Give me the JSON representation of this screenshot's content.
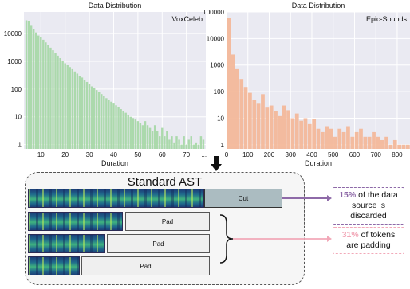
{
  "chart_data": [
    {
      "type": "bar",
      "title": "Data Distribution",
      "legend_label": "VoxCeleb",
      "xlabel": "Duration",
      "ylabel": "",
      "yscale": "log",
      "ylim": [
        0.7,
        60000
      ],
      "xlim": [
        3,
        78
      ],
      "yticks": [
        "1",
        "10",
        "100",
        "1000",
        "10000"
      ],
      "xticks": [
        "10",
        "20",
        "30",
        "40",
        "50",
        "60",
        "70",
        "..."
      ],
      "color": "#a8d8a8",
      "bin_width": 1,
      "x": [
        4,
        5,
        6,
        7,
        8,
        9,
        10,
        11,
        12,
        13,
        14,
        15,
        16,
        17,
        18,
        19,
        20,
        21,
        22,
        23,
        24,
        25,
        26,
        27,
        28,
        29,
        30,
        31,
        32,
        33,
        34,
        35,
        36,
        37,
        38,
        39,
        40,
        41,
        42,
        43,
        44,
        45,
        46,
        47,
        48,
        49,
        50,
        51,
        52,
        53,
        54,
        55,
        56,
        57,
        58,
        59,
        60,
        61,
        62,
        63,
        64,
        65,
        66,
        67,
        68,
        69,
        70,
        71,
        72,
        73,
        74,
        75,
        76,
        77
      ],
      "values": [
        30000,
        28000,
        19000,
        14500,
        11000,
        8500,
        7500,
        6000,
        4800,
        4000,
        3100,
        2500,
        2000,
        1600,
        1300,
        1050,
        850,
        720,
        620,
        520,
        430,
        360,
        300,
        260,
        215,
        180,
        150,
        125,
        108,
        92,
        78,
        66,
        56,
        47,
        40,
        35,
        30,
        26,
        22,
        19,
        16,
        14,
        12,
        10,
        9,
        8,
        7,
        6,
        5,
        7,
        5,
        4,
        3,
        5,
        3,
        2,
        4,
        2,
        3,
        1.5,
        2,
        1.2,
        2,
        1.5,
        1,
        2,
        1,
        1.5,
        2,
        1,
        1.2,
        1,
        2,
        1.5
      ]
    },
    {
      "type": "bar",
      "title": "Data Distribution",
      "legend_label": "Epic-Sounds",
      "xlabel": "Duration",
      "ylabel": "",
      "yscale": "log",
      "ylim": [
        0.7,
        100000
      ],
      "xlim": [
        0,
        860
      ],
      "yticks": [
        "1",
        "10",
        "100",
        "1000",
        "10000",
        "100000"
      ],
      "xticks": [
        "0",
        "100",
        "200",
        "300",
        "400",
        "500",
        "600",
        "700",
        "800"
      ],
      "color": "#f3b89a",
      "bin_width": 20,
      "x": [
        10,
        30,
        50,
        70,
        90,
        110,
        130,
        150,
        170,
        190,
        210,
        230,
        250,
        270,
        290,
        310,
        330,
        350,
        370,
        390,
        410,
        430,
        450,
        470,
        490,
        510,
        530,
        550,
        570,
        590,
        610,
        630,
        650,
        670,
        690,
        710,
        730,
        750,
        770,
        790,
        810,
        830,
        850
      ],
      "values": [
        60000,
        2500,
        700,
        300,
        150,
        90,
        50,
        35,
        80,
        25,
        30,
        18,
        12,
        30,
        20,
        10,
        15,
        8,
        10,
        6,
        9,
        4,
        3,
        5,
        4,
        2,
        4,
        3,
        5,
        2,
        3,
        4,
        2,
        2,
        3,
        2,
        1.5,
        2,
        1,
        1.5,
        1,
        1,
        1
      ]
    }
  ],
  "diagram": {
    "title": "Standard AST",
    "cut_label": "Cut",
    "pad_label": "Pad",
    "notes": [
      {
        "highlight": "15%",
        "text": " of the data source is discarded",
        "color": "#8e6aa8"
      },
      {
        "highlight": "31%",
        "text": " of tokens are padding",
        "color": "#f2a8b8"
      }
    ]
  }
}
